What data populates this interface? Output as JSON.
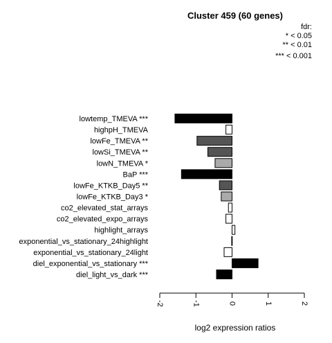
{
  "chart_data": {
    "type": "bar",
    "orientation": "horizontal",
    "title": "Cluster 459 (60 genes)",
    "xlabel": "log2 expression ratios",
    "ylabel": "",
    "xlim": [
      -2,
      2
    ],
    "x_ticks": [
      "-2",
      "-1",
      "0",
      "1",
      "2"
    ],
    "legend": {
      "title": "fdr:",
      "entries": [
        "* < 0.05",
        "** < 0.01",
        "*** < 0.001"
      ],
      "placement": "top-right"
    },
    "categories": [
      "lowtemp_TMEVA ***",
      "highpH_TMEVA",
      "lowFe_TMEVA **",
      "lowSi_TMEVA **",
      "lowN_TMEVA *",
      "BaP ***",
      "lowFe_KTKB_Day5 **",
      "lowFe_KTKB_Day3 *",
      "co2_elevated_stat_arrays",
      "co2_elevated_expo_arrays",
      "highlight_arrays",
      "exponential_vs_stationary_24highlight",
      "exponential_vs_stationary_24light",
      "diel_exponential_vs_stationary ***",
      "diel_light_vs_dark ***"
    ],
    "values": [
      -1.58,
      -0.17,
      -0.97,
      -0.67,
      -0.47,
      -1.4,
      -0.35,
      -0.3,
      -0.1,
      -0.17,
      0.08,
      -0.01,
      -0.22,
      0.72,
      -0.43
    ],
    "bar_colors": [
      "#000000",
      "#ffffff",
      "#555555",
      "#555555",
      "#aaaaaa",
      "#000000",
      "#555555",
      "#aaaaaa",
      "#ffffff",
      "#ffffff",
      "#ffffff",
      "#ffffff",
      "#ffffff",
      "#000000",
      "#000000"
    ],
    "grid": false
  }
}
